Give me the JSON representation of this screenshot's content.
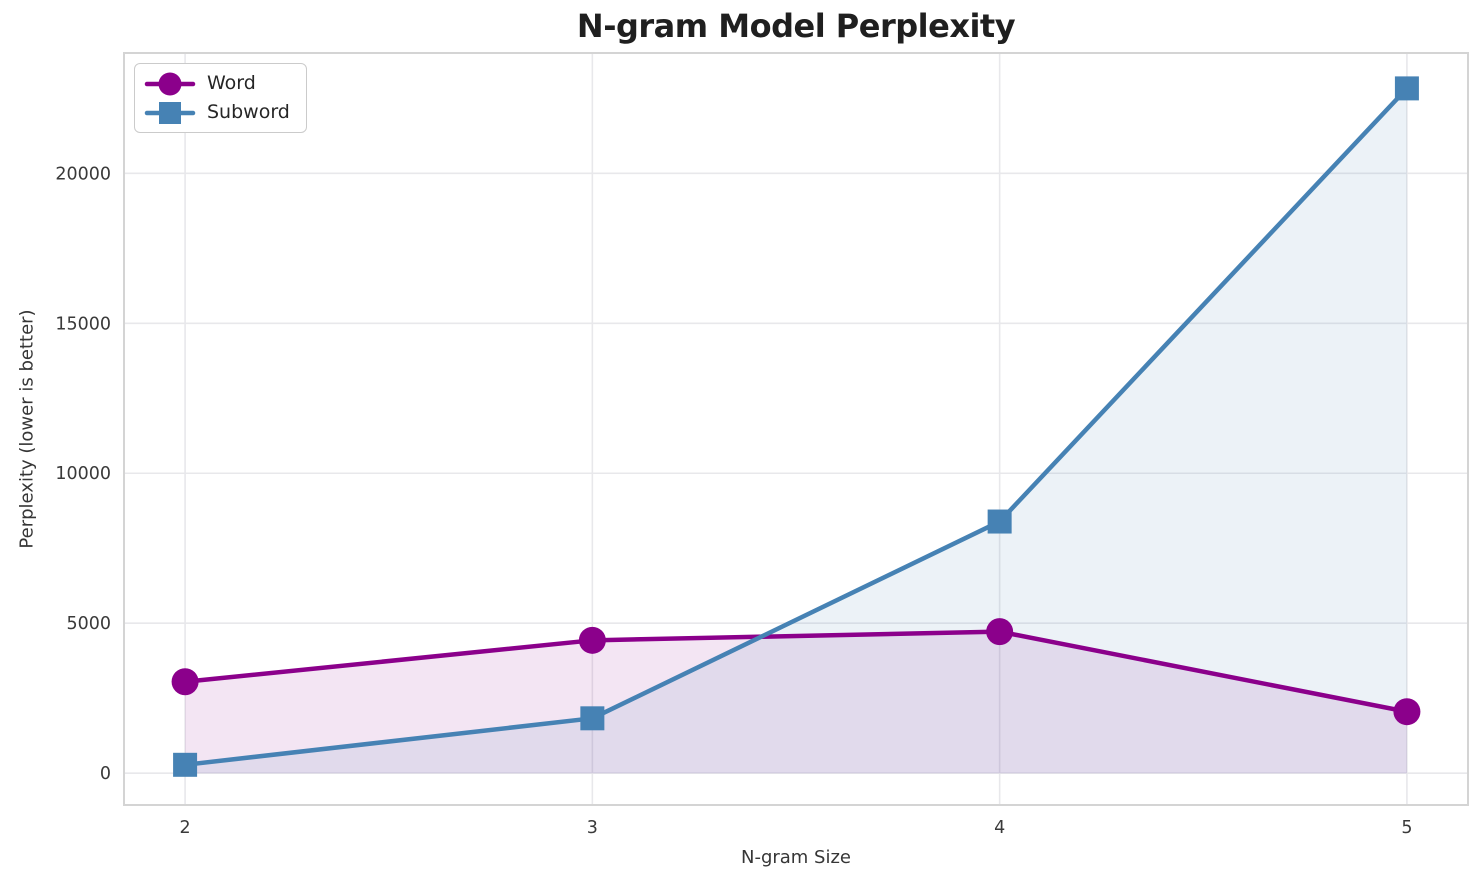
{
  "chart_data": {
    "type": "line",
    "title": "N-gram Model Perplexity",
    "xlabel": "N-gram Size",
    "ylabel": "Perplexity (lower is better)",
    "x": [
      2,
      3,
      4,
      5
    ],
    "series": [
      {
        "name": "Word",
        "values": [
          3050,
          4430,
          4720,
          2050
        ],
        "color": "#8B008B",
        "marker": "circle",
        "fill_opacity": 0.1
      },
      {
        "name": "Subword",
        "values": [
          280,
          1830,
          8390,
          22830
        ],
        "color": "#4682B4",
        "marker": "square",
        "fill_opacity": 0.1
      }
    ],
    "xticks": [
      2,
      3,
      4,
      5
    ],
    "yticks": [
      0,
      5000,
      10000,
      15000,
      20000
    ],
    "xlim": [
      1.85,
      5.15
    ],
    "ylim": [
      -1060,
      24010
    ],
    "grid": true,
    "area_fill_to": 0,
    "legend_position": "upper left"
  },
  "colors": {
    "background": "#ffffff",
    "grid": "#e8e8eb",
    "spine": "#d4d4d4",
    "tick_text": "#3a3a3a",
    "label_text": "#363636",
    "title_text": "#1f1f1f",
    "legend_border": "#cbcbcb",
    "legend_text": "#262626"
  }
}
